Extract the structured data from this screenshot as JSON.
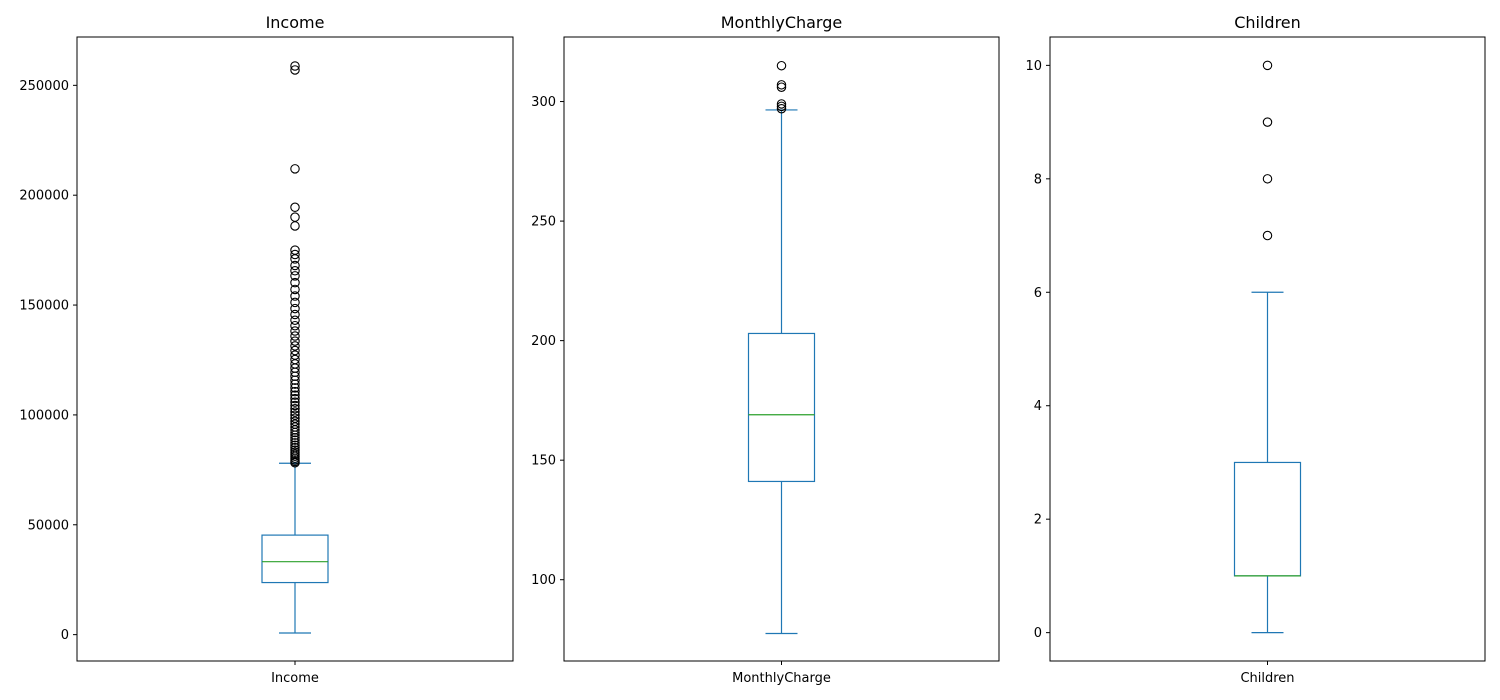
{
  "colors": {
    "box": "#1f77b4",
    "median": "#2ca02c",
    "outlier_edge": "#000000",
    "axes": "#000000"
  },
  "chart_data": [
    {
      "type": "box",
      "title": "Income",
      "xtick_label": "Income",
      "ylim": [
        -12000,
        272000
      ],
      "yticks": [
        0,
        50000,
        100000,
        150000,
        200000,
        250000
      ],
      "ytick_labels": [
        "0",
        "50000",
        "100000",
        "150000",
        "200000",
        "250000"
      ],
      "whisker_low": 740,
      "q1": 23700,
      "median": 33200,
      "q3": 45300,
      "whisker_high": 78000,
      "outliers": [
        78200,
        78800,
        79500,
        80300,
        81200,
        82100,
        83000,
        84000,
        85100,
        86200,
        87300,
        88500,
        89600,
        90800,
        92000,
        93200,
        94500,
        95800,
        97100,
        98500,
        99900,
        101300,
        102800,
        104300,
        105800,
        107400,
        109000,
        110600,
        112300,
        114000,
        115800,
        117600,
        119400,
        121300,
        123200,
        125200,
        127200,
        129300,
        131400,
        133600,
        135900,
        138200,
        140600,
        143100,
        145700,
        148400,
        151200,
        154100,
        157100,
        160200,
        163300,
        165600,
        168000,
        171000,
        173000,
        175000,
        186000,
        190000,
        194500,
        212000,
        257000,
        258800
      ]
    },
    {
      "type": "box",
      "title": "MonthlyCharge",
      "xtick_label": "MonthlyCharge",
      "ylim": [
        66,
        327
      ],
      "yticks": [
        100,
        150,
        200,
        250,
        300
      ],
      "ytick_labels": [
        "100",
        "150",
        "200",
        "250",
        "300"
      ],
      "whisker_low": 77.5,
      "q1": 141.1,
      "median": 169.0,
      "q3": 203.0,
      "whisker_high": 296.5,
      "outliers": [
        297.0,
        298.0,
        299.0,
        306.0,
        307.0,
        315.0
      ]
    },
    {
      "type": "box",
      "title": "Children",
      "xtick_label": "Children",
      "ylim": [
        -0.5,
        10.5
      ],
      "yticks": [
        0,
        2,
        4,
        6,
        8,
        10
      ],
      "ytick_labels": [
        "0",
        "2",
        "4",
        "6",
        "8",
        "10"
      ],
      "whisker_low": 0,
      "q1": 1,
      "median": 1,
      "q3": 3,
      "whisker_high": 6,
      "outliers": [
        7,
        8,
        9,
        10
      ]
    }
  ]
}
